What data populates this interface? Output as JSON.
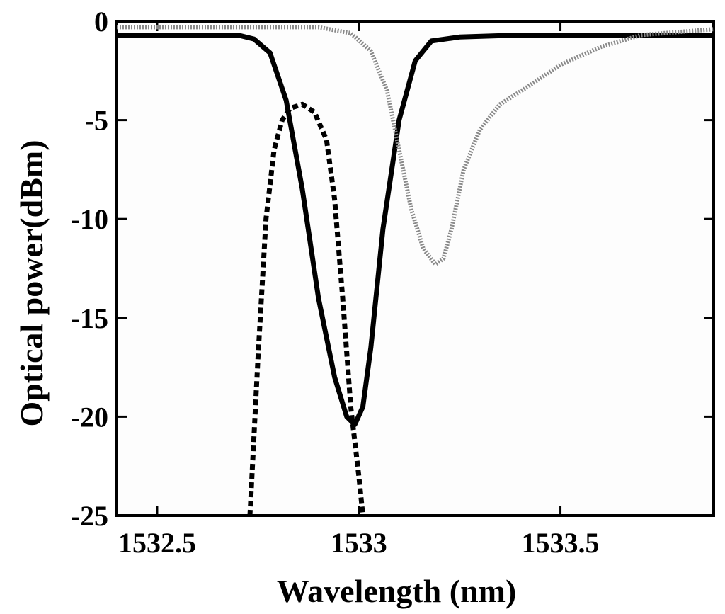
{
  "chart_data": {
    "type": "line",
    "title": "",
    "xlabel": "Wavelength  (nm)",
    "ylabel": "Optical power(dBm)",
    "xlim": [
      1532.4,
      1533.88
    ],
    "ylim": [
      -25,
      0
    ],
    "xticks": [
      1532.5,
      1533,
      1533.5
    ],
    "xtick_labels": [
      "1532.5",
      "1533",
      "1533.5"
    ],
    "yticks": [
      0,
      -5,
      -10,
      -15,
      -20,
      -25
    ],
    "ytick_labels": [
      "0",
      "-5",
      "-10",
      "-15",
      "-20",
      "-25"
    ],
    "grid": false,
    "legend": "none",
    "series": [
      {
        "style": "solid",
        "color": "#000000",
        "x": [
          1532.4,
          1532.7,
          1532.74,
          1532.78,
          1532.82,
          1532.86,
          1532.9,
          1532.94,
          1532.97,
          1532.99,
          1533.01,
          1533.03,
          1533.06,
          1533.1,
          1533.14,
          1533.18,
          1533.25,
          1533.4,
          1533.88
        ],
        "y": [
          -0.7,
          -0.7,
          -0.9,
          -1.6,
          -4.0,
          -8.5,
          -14.0,
          -18.0,
          -20.0,
          -20.4,
          -19.5,
          -16.5,
          -10.5,
          -5.0,
          -2.0,
          -1.0,
          -0.8,
          -0.7,
          -0.7
        ]
      },
      {
        "style": "dashed",
        "color": "#000000",
        "x": [
          1532.73,
          1532.75,
          1532.77,
          1532.79,
          1532.81,
          1532.83,
          1532.86,
          1532.89,
          1532.92,
          1532.94,
          1532.96,
          1532.98,
          1533.0,
          1533.01
        ],
        "y": [
          -25,
          -17,
          -10,
          -6.5,
          -5.0,
          -4.4,
          -4.2,
          -4.6,
          -6.0,
          -9.0,
          -14.0,
          -19.5,
          -23.0,
          -25
        ]
      },
      {
        "style": "dotted",
        "color": "#8a8a8a",
        "x": [
          1532.4,
          1532.9,
          1532.98,
          1533.03,
          1533.07,
          1533.1,
          1533.13,
          1533.16,
          1533.19,
          1533.21,
          1533.23,
          1533.26,
          1533.3,
          1533.35,
          1533.42,
          1533.5,
          1533.6,
          1533.7,
          1533.88
        ],
        "y": [
          -0.3,
          -0.3,
          -0.6,
          -1.5,
          -3.5,
          -6.5,
          -9.5,
          -11.5,
          -12.3,
          -12.0,
          -10.5,
          -7.5,
          -5.5,
          -4.2,
          -3.3,
          -2.2,
          -1.3,
          -0.7,
          -0.4
        ]
      }
    ]
  }
}
